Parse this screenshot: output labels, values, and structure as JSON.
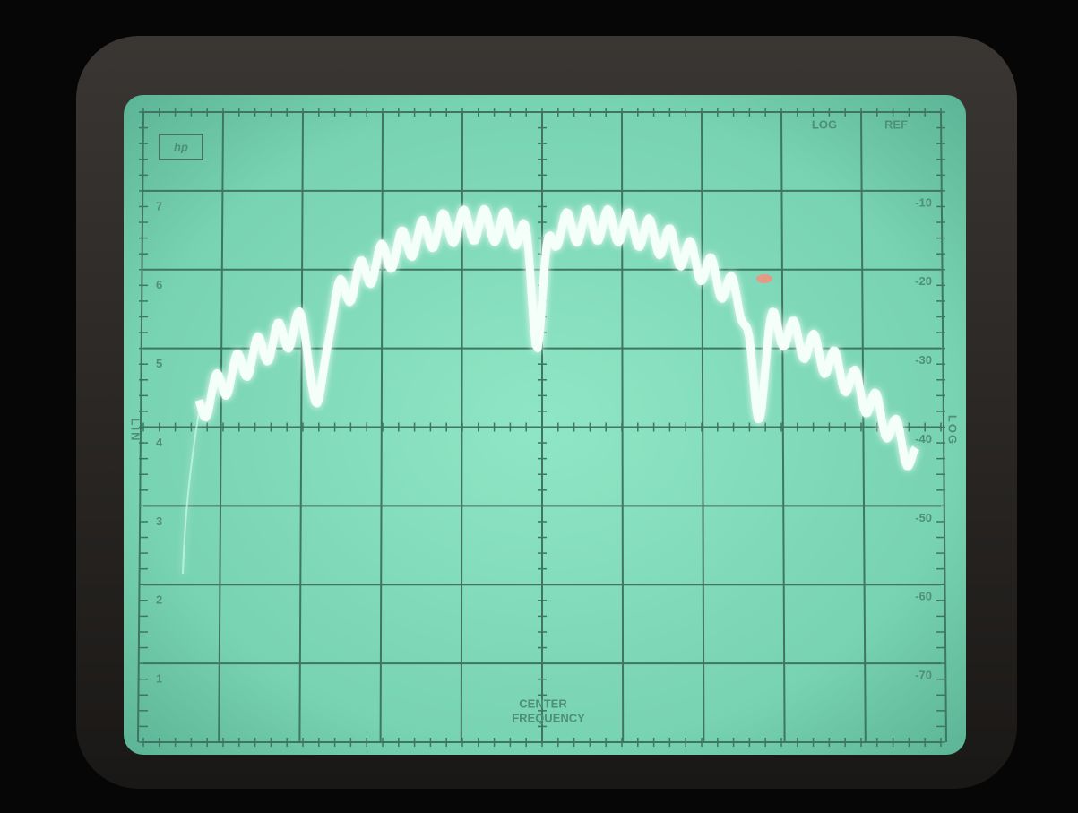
{
  "screen": {
    "logo": "hp",
    "top_labels": [
      "LOG",
      "REF"
    ],
    "right_scale": [
      "-10",
      "-20",
      "-30",
      "-40",
      "-50",
      "-60",
      "-70"
    ],
    "left_scale": [
      "7",
      "6",
      "5",
      "4",
      "3",
      "2",
      "1"
    ],
    "left_mode": "LIN",
    "right_mode": "LOG",
    "center_label": [
      "CENTER",
      "FREQUENCY"
    ]
  }
}
